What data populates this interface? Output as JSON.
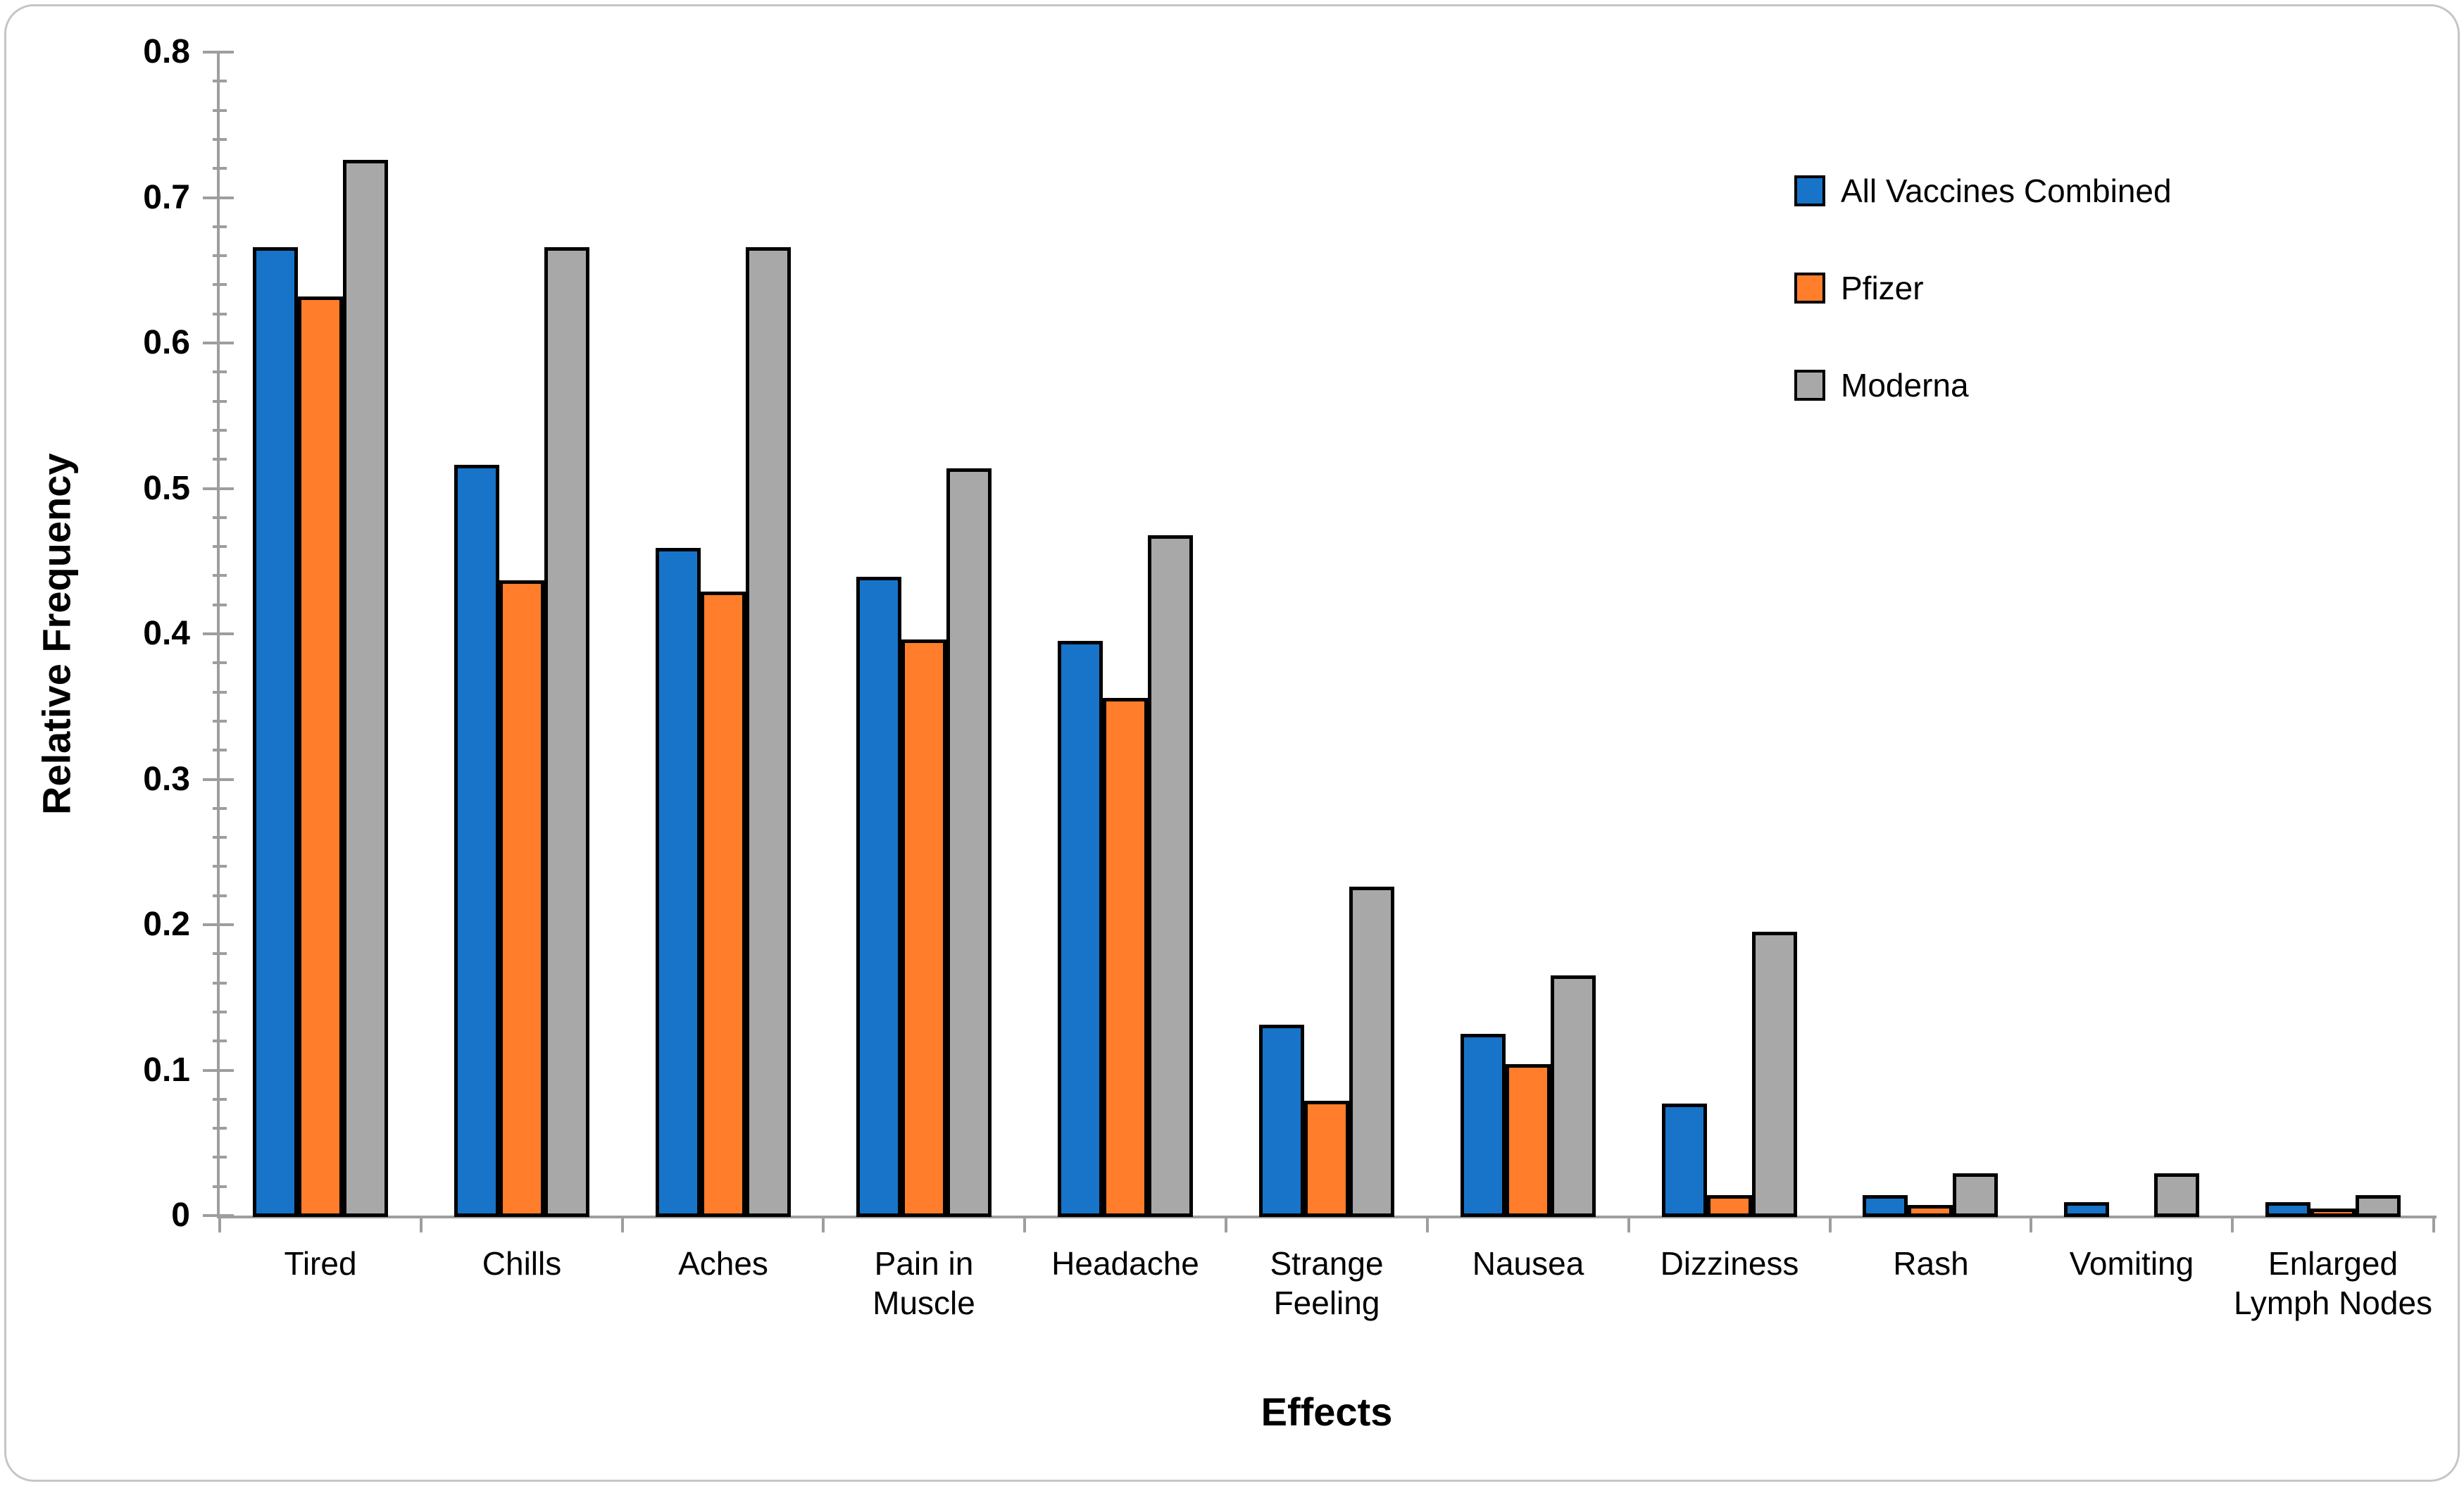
{
  "chart_data": {
    "type": "bar",
    "title": "",
    "xlabel": "Effects",
    "ylabel": "Relative Frequency",
    "ylim": [
      0,
      0.8
    ],
    "ytick_interval": 0.1,
    "yminor_interval": 0.02,
    "y_tick_labels": [
      "0",
      "0.1",
      "0.2",
      "0.3",
      "0.4",
      "0.5",
      "0.6",
      "0.7",
      "0.8"
    ],
    "grid": false,
    "legend_position": "upper right",
    "categories": [
      "Tired",
      "Chills",
      "Aches",
      "Pain in Muscle",
      "Headache",
      "Strange Feeling",
      "Nausea",
      "Dizziness",
      "Rash",
      "Vomiting",
      "Enlarged Lymph Nodes"
    ],
    "series": [
      {
        "name": "All Vaccines Combined",
        "color": "#1774C9",
        "values": [
          0.667,
          0.517,
          0.46,
          0.44,
          0.396,
          0.132,
          0.126,
          0.078,
          0.015,
          0.01,
          0.01
        ]
      },
      {
        "name": "Pfizer",
        "color": "#FF7D2B",
        "values": [
          0.633,
          0.438,
          0.43,
          0.397,
          0.357,
          0.08,
          0.105,
          0.015,
          0.008,
          0,
          0.006
        ]
      },
      {
        "name": "Moderna",
        "color": "#A8A8A8",
        "values": [
          0.727,
          0.667,
          0.667,
          0.515,
          0.469,
          0.227,
          0.166,
          0.196,
          0.03,
          0.03,
          0.015
        ]
      }
    ],
    "bar_border_color": "#000000",
    "axis_color": "#9E9E9E",
    "frame_color": "#C6C6C6",
    "background_color": "#FFFFFF"
  }
}
